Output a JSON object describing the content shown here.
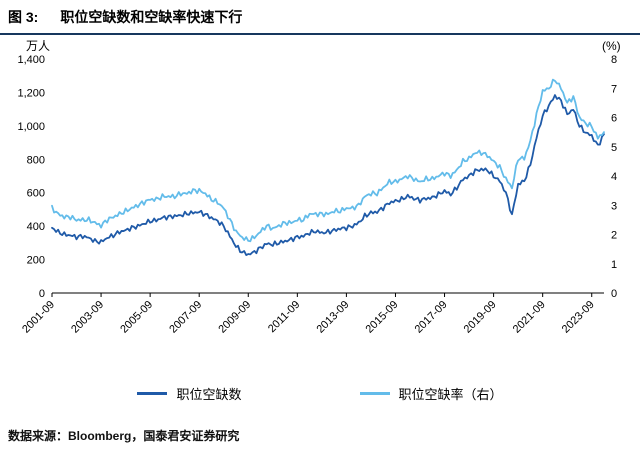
{
  "header": {
    "figure_label": "图 3:",
    "title": "职位空缺数和空缺率快速下行"
  },
  "chart_data": {
    "type": "line",
    "title": "职位空缺数和空缺率快速下行",
    "grid": false,
    "legend_position": "bottom",
    "x_start": "2001-09",
    "x_interval_months": 3,
    "x_ticks": [
      "2001-09",
      "2003-09",
      "2005-09",
      "2007-09",
      "2009-09",
      "2011-09",
      "2013-09",
      "2015-09",
      "2017-09",
      "2019-09",
      "2021-09",
      "2023-09"
    ],
    "left_axis": {
      "unit": "万人",
      "min": 0,
      "max": 1400,
      "tick_step": 200
    },
    "right_axis": {
      "unit": "(%)",
      "min": 0,
      "max": 8,
      "tick_step": 1
    },
    "series": [
      {
        "name": "职位空缺数",
        "axis": "left",
        "color": "#1F5AA8",
        "values": [
          390,
          365,
          350,
          345,
          335,
          340,
          330,
          310,
          305,
          330,
          345,
          365,
          375,
          390,
          400,
          415,
          430,
          435,
          450,
          455,
          460,
          465,
          475,
          480,
          485,
          470,
          450,
          430,
          400,
          340,
          280,
          245,
          230,
          245,
          270,
          295,
          290,
          300,
          310,
          320,
          335,
          340,
          360,
          370,
          360,
          365,
          375,
          385,
          390,
          400,
          420,
          460,
          480,
          485,
          510,
          540,
          550,
          560,
          580,
          565,
          555,
          565,
          570,
          590,
          610,
          590,
          630,
          680,
          700,
          730,
          740,
          735,
          700,
          670,
          600,
          465,
          650,
          670,
          770,
          930,
          1060,
          1120,
          1180,
          1150,
          1070,
          1100,
          1000,
          960,
          940,
          880,
          950
        ]
      },
      {
        "name": "职位空缺率（右）",
        "axis": "right",
        "color": "#63BCEA",
        "values": [
          2.9,
          2.7,
          2.6,
          2.6,
          2.5,
          2.5,
          2.5,
          2.4,
          2.3,
          2.5,
          2.6,
          2.7,
          2.8,
          2.9,
          3.0,
          3.1,
          3.2,
          3.2,
          3.3,
          3.3,
          3.3,
          3.4,
          3.4,
          3.5,
          3.5,
          3.4,
          3.2,
          3.1,
          2.9,
          2.5,
          2.1,
          1.9,
          1.8,
          1.9,
          2.1,
          2.3,
          2.2,
          2.3,
          2.4,
          2.4,
          2.5,
          2.5,
          2.7,
          2.7,
          2.7,
          2.7,
          2.8,
          2.8,
          2.9,
          2.9,
          3.0,
          3.3,
          3.4,
          3.4,
          3.6,
          3.8,
          3.8,
          3.9,
          4.0,
          3.9,
          3.8,
          3.9,
          3.9,
          4.0,
          4.1,
          4.0,
          4.2,
          4.5,
          4.6,
          4.8,
          4.8,
          4.7,
          4.5,
          4.3,
          3.9,
          3.6,
          4.6,
          4.6,
          5.2,
          6.1,
          6.9,
          7.0,
          7.3,
          7.0,
          6.5,
          6.7,
          6.0,
          5.8,
          5.7,
          5.3,
          5.5
        ]
      }
    ]
  },
  "footer": {
    "source": "数据来源：Bloomberg，国泰君安证券研究"
  },
  "colors": {
    "header_rule": "#17375E",
    "axis_line": "#000000",
    "series_dark_blue": "#1F5AA8",
    "series_light_blue": "#63BCEA"
  }
}
